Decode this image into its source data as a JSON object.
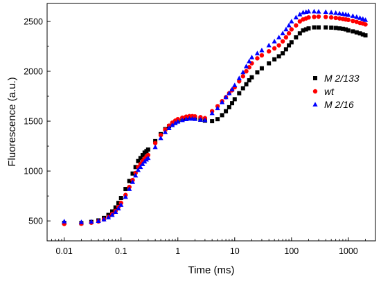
{
  "chart_data": {
    "type": "scatter",
    "title": "",
    "xlabel": "Time (ms)",
    "ylabel": "Fluorescence (a.u.)",
    "xscale": "log",
    "xlim": [
      0.005,
      3000
    ],
    "ylim": [
      300,
      2680
    ],
    "xticks": [
      {
        "value": 0.01,
        "label": "0.01"
      },
      {
        "value": 0.1,
        "label": "0.1"
      },
      {
        "value": 1,
        "label": "1"
      },
      {
        "value": 10,
        "label": "10"
      },
      {
        "value": 100,
        "label": "100"
      },
      {
        "value": 1000,
        "label": "1000"
      }
    ],
    "yticks": [
      {
        "value": 500,
        "label": "500"
      },
      {
        "value": 1000,
        "label": "1000"
      },
      {
        "value": 1500,
        "label": "1500"
      },
      {
        "value": 2000,
        "label": "2000"
      },
      {
        "value": 2500,
        "label": "2500"
      }
    ],
    "grid": false,
    "legend_position": "right",
    "series": [
      {
        "name": "M 2/133",
        "marker": "square",
        "color": "#000000",
        "x": [
          0.01,
          0.02,
          0.03,
          0.04,
          0.05,
          0.06,
          0.07,
          0.08,
          0.09,
          0.1,
          0.12,
          0.14,
          0.16,
          0.18,
          0.2,
          0.22,
          0.24,
          0.26,
          0.28,
          0.3,
          0.4,
          0.5,
          0.6,
          0.7,
          0.8,
          0.9,
          1.0,
          1.2,
          1.4,
          1.6,
          1.8,
          2.0,
          2.5,
          3.0,
          4,
          5,
          6,
          7,
          8,
          9,
          10,
          12,
          14,
          16,
          18,
          20,
          25,
          30,
          40,
          50,
          60,
          70,
          80,
          90,
          100,
          120,
          140,
          160,
          180,
          200,
          250,
          300,
          400,
          500,
          600,
          700,
          800,
          900,
          1000,
          1200,
          1400,
          1600,
          1800,
          2000
        ],
        "y": [
          480,
          478,
          490,
          505,
          530,
          560,
          595,
          635,
          680,
          730,
          820,
          900,
          975,
          1040,
          1100,
          1130,
          1160,
          1185,
          1200,
          1215,
          1300,
          1370,
          1420,
          1450,
          1475,
          1490,
          1500,
          1515,
          1525,
          1530,
          1530,
          1528,
          1515,
          1505,
          1500,
          1520,
          1560,
          1600,
          1640,
          1680,
          1720,
          1780,
          1830,
          1870,
          1910,
          1940,
          1990,
          2030,
          2080,
          2120,
          2150,
          2180,
          2220,
          2260,
          2290,
          2340,
          2380,
          2410,
          2420,
          2430,
          2440,
          2440,
          2440,
          2438,
          2435,
          2430,
          2425,
          2420,
          2410,
          2400,
          2390,
          2380,
          2370,
          2360
        ]
      },
      {
        "name": "wt",
        "marker": "circle",
        "color": "#ff0000",
        "x": [
          0.01,
          0.02,
          0.03,
          0.04,
          0.05,
          0.06,
          0.07,
          0.08,
          0.09,
          0.1,
          0.12,
          0.14,
          0.16,
          0.18,
          0.2,
          0.22,
          0.24,
          0.26,
          0.28,
          0.3,
          0.4,
          0.5,
          0.6,
          0.7,
          0.8,
          0.9,
          1.0,
          1.2,
          1.4,
          1.6,
          1.8,
          2.0,
          2.5,
          3.0,
          4,
          5,
          6,
          7,
          8,
          9,
          10,
          12,
          14,
          16,
          18,
          20,
          25,
          30,
          40,
          50,
          60,
          70,
          80,
          90,
          100,
          120,
          140,
          160,
          180,
          200,
          250,
          300,
          400,
          500,
          600,
          700,
          800,
          900,
          1000,
          1200,
          1400,
          1600,
          1800,
          2000
        ],
        "y": [
          470,
          472,
          482,
          495,
          515,
          540,
          570,
          600,
          640,
          680,
          760,
          840,
          910,
          980,
          1040,
          1070,
          1100,
          1125,
          1145,
          1160,
          1280,
          1360,
          1415,
          1455,
          1485,
          1505,
          1520,
          1535,
          1545,
          1550,
          1550,
          1548,
          1540,
          1530,
          1600,
          1650,
          1700,
          1740,
          1780,
          1810,
          1840,
          1900,
          1950,
          2000,
          2040,
          2080,
          2130,
          2160,
          2200,
          2230,
          2260,
          2300,
          2340,
          2380,
          2420,
          2460,
          2500,
          2520,
          2530,
          2540,
          2545,
          2548,
          2545,
          2540,
          2535,
          2530,
          2525,
          2520,
          2515,
          2505,
          2495,
          2485,
          2480,
          2470
        ]
      },
      {
        "name": "M 2/16",
        "marker": "triangle",
        "color": "#0000ff",
        "x": [
          0.01,
          0.02,
          0.03,
          0.04,
          0.05,
          0.06,
          0.07,
          0.08,
          0.09,
          0.1,
          0.12,
          0.14,
          0.16,
          0.18,
          0.2,
          0.22,
          0.24,
          0.26,
          0.28,
          0.3,
          0.4,
          0.5,
          0.6,
          0.7,
          0.8,
          0.9,
          1.0,
          1.2,
          1.4,
          1.6,
          1.8,
          2.0,
          2.5,
          3.0,
          4,
          5,
          6,
          7,
          8,
          9,
          10,
          12,
          14,
          16,
          18,
          20,
          25,
          30,
          40,
          50,
          60,
          70,
          80,
          90,
          100,
          120,
          140,
          160,
          180,
          200,
          250,
          300,
          400,
          500,
          600,
          700,
          800,
          900,
          1000,
          1200,
          1400,
          1600,
          1800,
          2000
        ],
        "y": [
          495,
          488,
          492,
          500,
          515,
          535,
          560,
          590,
          625,
          660,
          740,
          820,
          890,
          955,
          1010,
          1040,
          1070,
          1095,
          1115,
          1130,
          1240,
          1330,
          1390,
          1430,
          1460,
          1480,
          1495,
          1510,
          1520,
          1525,
          1525,
          1522,
          1515,
          1510,
          1580,
          1630,
          1690,
          1740,
          1780,
          1820,
          1860,
          1930,
          1990,
          2050,
          2100,
          2140,
          2180,
          2210,
          2260,
          2300,
          2340,
          2380,
          2420,
          2460,
          2500,
          2540,
          2570,
          2590,
          2595,
          2600,
          2600,
          2598,
          2595,
          2590,
          2585,
          2580,
          2575,
          2570,
          2565,
          2555,
          2545,
          2535,
          2525,
          2515
        ]
      }
    ]
  }
}
